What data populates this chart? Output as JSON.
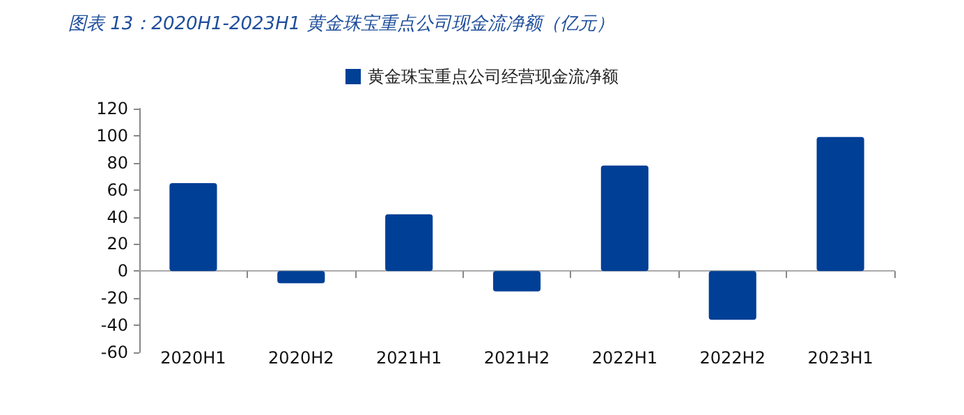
{
  "chart_data": {
    "type": "bar",
    "title": "图表 13：2020H1-2023H1 黄金珠宝重点公司现金流净额（亿元）",
    "categories": [
      "2020H1",
      "2020H2",
      "2021H1",
      "2021H2",
      "2022H1",
      "2022H2",
      "2023H1"
    ],
    "series": [
      {
        "name": "黄金珠宝重点公司经营现金流净额",
        "color": "#003f96",
        "values": [
          65,
          -9,
          42,
          -15,
          78,
          -36,
          99
        ]
      }
    ],
    "ylim": [
      -60,
      120
    ],
    "yticks": [
      -60,
      -40,
      -20,
      0,
      20,
      40,
      60,
      80,
      100,
      120
    ],
    "legend": "top"
  }
}
